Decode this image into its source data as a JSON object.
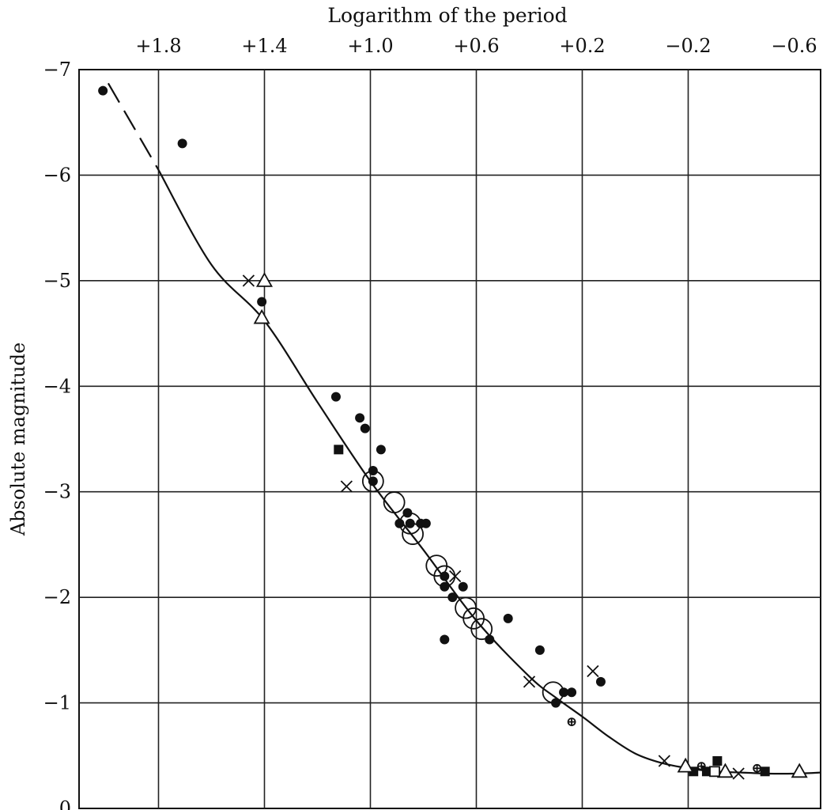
{
  "chart_data": {
    "type": "scatter",
    "title": "Logarithm of the period",
    "ylabel": "Absolute magnitude",
    "x_axis": {
      "position": "top",
      "reversed": true,
      "range": [
        2.1,
        -0.7
      ],
      "ticks": [
        1.8,
        1.4,
        1.0,
        0.6,
        0.2,
        -0.2,
        -0.6
      ],
      "tick_labels": [
        "+1.8",
        "+1.4",
        "+1.0",
        "+0.6",
        "+0.2",
        "−0.2",
        "−0.6"
      ],
      "gridlines": [
        1.8,
        1.4,
        1.0,
        0.6,
        0.2,
        -0.2
      ]
    },
    "y_axis": {
      "range": [
        0,
        7
      ],
      "ticks": [
        7,
        6,
        5,
        4,
        3,
        2,
        1,
        0
      ],
      "tick_labels": [
        "−7",
        "−6",
        "−5",
        "−4",
        "−3",
        "−2",
        "−1",
        "0"
      ],
      "gridlines": [
        1,
        2,
        3,
        4,
        5,
        6
      ]
    },
    "grid": true,
    "fit_curve": {
      "dashed": [
        [
          1.99,
          6.87
        ],
        [
          1.8,
          6.05
        ]
      ],
      "solid": [
        [
          1.8,
          6.05
        ],
        [
          1.6,
          5.15
        ],
        [
          1.4,
          4.62
        ],
        [
          1.2,
          3.85
        ],
        [
          1.0,
          3.1
        ],
        [
          0.8,
          2.45
        ],
        [
          0.6,
          1.78
        ],
        [
          0.4,
          1.25
        ],
        [
          0.3,
          1.05
        ],
        [
          0.2,
          0.87
        ],
        [
          0.1,
          0.68
        ],
        [
          0.0,
          0.52
        ],
        [
          -0.1,
          0.43
        ],
        [
          -0.2,
          0.38
        ],
        [
          -0.3,
          0.35
        ],
        [
          -0.4,
          0.34
        ],
        [
          -0.5,
          0.33
        ],
        [
          -0.6,
          0.33
        ],
        [
          -0.7,
          0.34
        ]
      ]
    },
    "series": [
      {
        "marker": "filled-circle",
        "points": [
          [
            2.01,
            6.8
          ],
          [
            1.71,
            6.3
          ],
          [
            1.41,
            4.8
          ],
          [
            1.13,
            3.9
          ],
          [
            1.04,
            3.7
          ],
          [
            1.02,
            3.6
          ],
          [
            0.99,
            3.2
          ],
          [
            0.96,
            3.4
          ],
          [
            0.99,
            3.1
          ],
          [
            0.89,
            2.7
          ],
          [
            0.86,
            2.8
          ],
          [
            0.85,
            2.7
          ],
          [
            0.81,
            2.7
          ],
          [
            0.79,
            2.7
          ],
          [
            0.72,
            2.2
          ],
          [
            0.72,
            2.1
          ],
          [
            0.69,
            2.0
          ],
          [
            0.65,
            2.1
          ],
          [
            0.72,
            1.6
          ],
          [
            0.55,
            1.6
          ],
          [
            0.48,
            1.8
          ],
          [
            0.36,
            1.5
          ],
          [
            0.3,
            1.0
          ],
          [
            0.27,
            1.1
          ],
          [
            0.24,
            1.1
          ],
          [
            0.13,
            1.2
          ]
        ]
      },
      {
        "marker": "filled-square",
        "points": [
          [
            1.12,
            3.4
          ],
          [
            -0.22,
            0.35
          ],
          [
            -0.27,
            0.35
          ],
          [
            -0.31,
            0.45
          ],
          [
            -0.49,
            0.35
          ]
        ]
      },
      {
        "marker": "open-circle-large",
        "points": [
          [
            0.99,
            3.1
          ],
          [
            0.91,
            2.9
          ],
          [
            0.85,
            2.7
          ],
          [
            0.84,
            2.6
          ],
          [
            0.75,
            2.3
          ],
          [
            0.72,
            2.2
          ],
          [
            0.64,
            1.9
          ],
          [
            0.61,
            1.8
          ],
          [
            0.58,
            1.7
          ],
          [
            0.31,
            1.1
          ]
        ]
      },
      {
        "marker": "cross",
        "points": [
          [
            1.46,
            5.0
          ],
          [
            1.09,
            3.05
          ],
          [
            0.68,
            2.2
          ],
          [
            0.4,
            1.2
          ],
          [
            0.16,
            1.3
          ],
          [
            -0.11,
            0.45
          ],
          [
            -0.39,
            0.33
          ]
        ]
      },
      {
        "marker": "open-triangle",
        "points": [
          [
            1.4,
            5.0
          ],
          [
            1.41,
            4.65
          ],
          [
            -0.19,
            0.4
          ],
          [
            -0.34,
            0.35
          ],
          [
            -0.62,
            0.35
          ]
        ]
      },
      {
        "marker": "open-square",
        "points": [
          [
            -0.3,
            0.35
          ]
        ]
      },
      {
        "marker": "small-circle-plus",
        "points": [
          [
            0.24,
            0.82
          ],
          [
            -0.25,
            0.4
          ],
          [
            -0.46,
            0.38
          ]
        ]
      }
    ]
  }
}
